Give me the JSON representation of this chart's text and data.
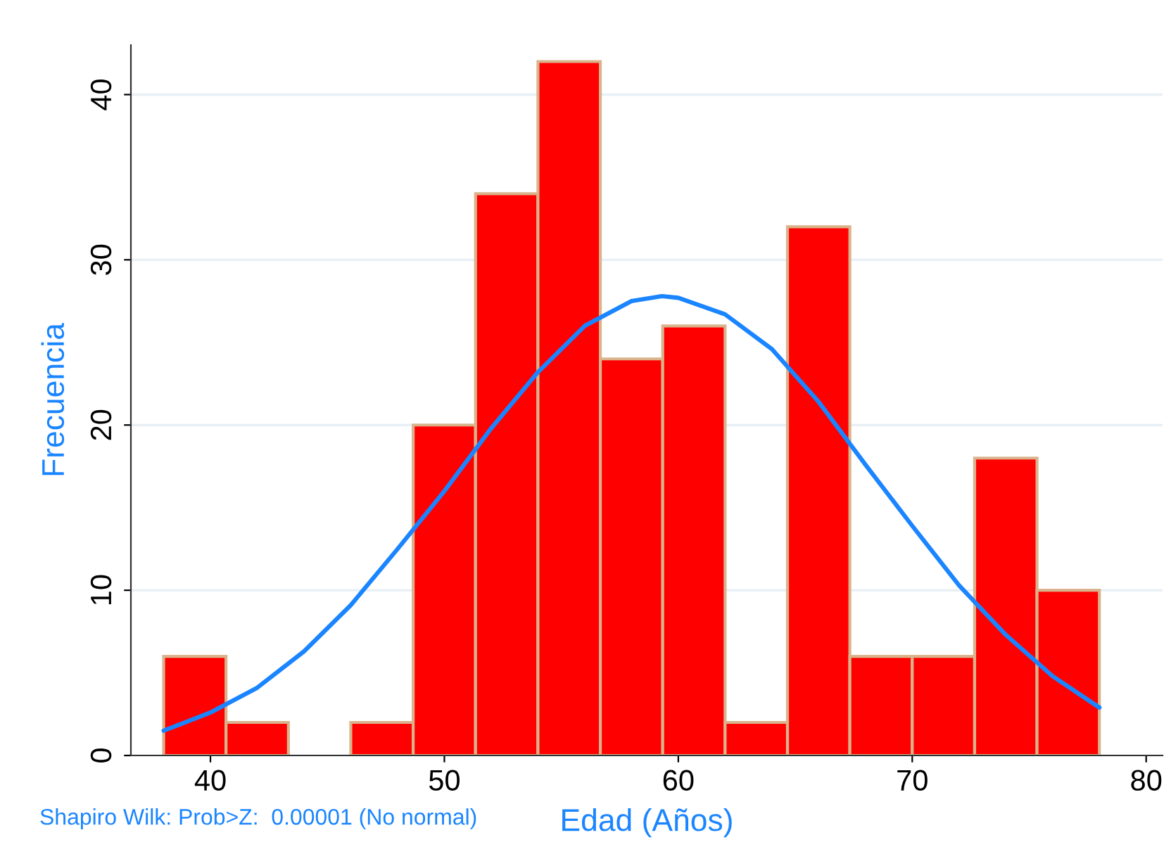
{
  "chart_data": {
    "type": "histogram",
    "xlabel": "Edad (Años)",
    "ylabel": "Frecuencia",
    "bins": [
      38,
      40.667,
      43.333,
      46,
      48.667,
      51.333,
      54,
      56.667,
      59.333,
      62,
      64.667,
      67.333,
      70,
      72.667,
      75.333,
      78
    ],
    "values": [
      6,
      2,
      0,
      2,
      20,
      34,
      42,
      24,
      26,
      2,
      32,
      6,
      6,
      18,
      10
    ],
    "color": "#ff0000",
    "series": [
      {
        "type": "line",
        "color": "#1a85ff",
        "x": [
          38,
          40,
          42,
          44,
          46,
          48,
          50,
          52,
          54,
          56,
          58,
          59.3,
          60,
          62,
          64,
          66,
          68,
          70,
          72,
          74,
          76,
          78
        ],
        "values": [
          1.5,
          2.6,
          4.1,
          6.3,
          9.1,
          12.5,
          16.0,
          19.8,
          23.2,
          26.0,
          27.5,
          27.8,
          27.7,
          26.7,
          24.6,
          21.4,
          17.6,
          13.9,
          10.3,
          7.3,
          4.8,
          2.9
        ]
      }
    ],
    "xlim": [
      36.6,
      80.7
    ],
    "ylim": [
      0,
      43
    ],
    "xticks": [
      40,
      50,
      60,
      70,
      80
    ],
    "yticks": [
      0,
      10,
      20,
      30,
      40
    ],
    "grid": "y",
    "annotations": [
      "Shapiro Wilk: Prob>Z:  0.00001 (No normal)"
    ]
  }
}
